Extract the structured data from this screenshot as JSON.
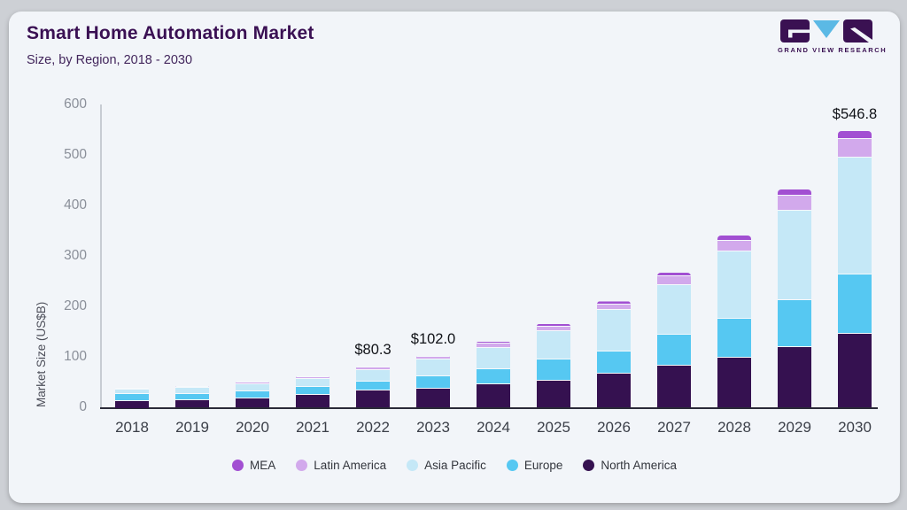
{
  "header": {
    "title": "Smart Home Automation Market",
    "subtitle": "Size, by Region, 2018 - 2030",
    "brand": "GRAND VIEW RESEARCH"
  },
  "colors": {
    "card_background": "#f2f5f9",
    "outer_background": "#cdd0d5",
    "title_text": "#3a1053",
    "axis_dark": "#2a2a38",
    "axis_light": "#c7ccd3",
    "logo_purple": "#3a1152",
    "logo_blue": "#5bb9e5"
  },
  "chart_data": {
    "type": "bar",
    "variant": "stacked",
    "title": "Smart Home Automation Market",
    "subtitle": "Size, by Region, 2018 - 2030",
    "xlabel": "",
    "ylabel": "Market Size (US$B)",
    "ylim": [
      0,
      600
    ],
    "yticks": [
      0,
      100,
      200,
      300,
      400,
      500,
      600
    ],
    "grid": false,
    "legend_position": "bottom",
    "categories": [
      "2018",
      "2019",
      "2020",
      "2021",
      "2022",
      "2023",
      "2024",
      "2025",
      "2026",
      "2027",
      "2028",
      "2029",
      "2030"
    ],
    "series": [
      {
        "name": "North America",
        "color": "#351150",
        "values": [
          13.5,
          15.5,
          19,
          24,
          33,
          36,
          45,
          53,
          67,
          82,
          99,
          120,
          146
        ]
      },
      {
        "name": "Europe",
        "color": "#56c8f2",
        "values": [
          13.5,
          12,
          14,
          16.5,
          18.5,
          26,
          30,
          41,
          44,
          61,
          77,
          93,
          117
        ]
      },
      {
        "name": "Asia Pacific",
        "color": "#c5e8f7",
        "values": [
          8.5,
          12,
          14,
          16.5,
          22.5,
          33,
          42,
          57,
          81.8,
          99,
          132,
          177,
          232
        ]
      },
      {
        "name": "Latin America",
        "color": "#d2a9ec",
        "values": [
          1.8,
          2.5,
          3,
          3.5,
          4.3,
          5,
          9,
          9.5,
          11,
          17,
          21.5,
          29,
          37
        ]
      },
      {
        "name": "MEA",
        "color": "#a24fd2",
        "values": [
          0.7,
          1,
          1,
          1.5,
          2,
          2,
          3.8,
          4.5,
          6,
          7.7,
          10.5,
          11.9,
          14.8
        ]
      }
    ],
    "totals": [
      38.0,
      43.0,
      51.0,
      62.0,
      80.3,
      102.0,
      129.8,
      165.0,
      209.8,
      266.7,
      340.0,
      430.9,
      546.8
    ],
    "annotations": {
      "2022": "$80.3",
      "2023": "$102.0",
      "2030": "$546.8"
    }
  }
}
